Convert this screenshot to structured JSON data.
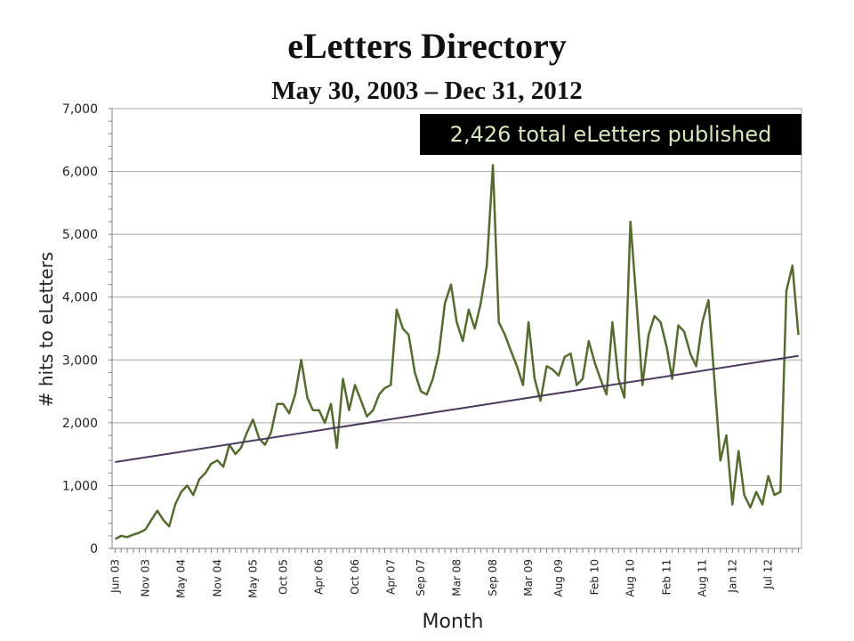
{
  "title": "eLetters Directory",
  "subtitle": "May 30, 2003 – Dec 31, 2012",
  "banner": "2,426 total eLetters published",
  "chart_data": {
    "type": "line",
    "title": "eLetters Directory",
    "subtitle": "May 30, 2003 – Dec 31, 2012",
    "xlabel": "Month",
    "ylabel": "# hits to eLetters",
    "ylim": [
      0,
      7000
    ],
    "yticks": [
      0,
      1000,
      2000,
      3000,
      4000,
      5000,
      6000,
      7000
    ],
    "ytick_labels": [
      "0",
      "1,000",
      "2,000",
      "3,000",
      "4,000",
      "5,000",
      "6,000",
      "7,000"
    ],
    "xlim": [
      "2003-05-30",
      "2012-12-31"
    ],
    "xticks": [
      "2003-06",
      "2003-11",
      "2004-05",
      "2004-11",
      "2005-05",
      "2005-10",
      "2006-04",
      "2006-10",
      "2007-04",
      "2007-09",
      "2008-03",
      "2008-09",
      "2009-03",
      "2009-08",
      "2010-02",
      "2010-08",
      "2011-02",
      "2011-08",
      "2012-01",
      "2012-07"
    ],
    "xtick_labels": [
      "Jun 03",
      "Nov 03",
      "May 04",
      "Nov 04",
      "May 05",
      "Oct 05",
      "Apr 06",
      "Oct 06",
      "Apr 07",
      "Sep 07",
      "Mar 08",
      "Sep 08",
      "Mar 09",
      "Aug 09",
      "Feb 10",
      "Aug 10",
      "Feb 11",
      "Aug 11",
      "Jan 12",
      "Jul 12"
    ],
    "grid": "horizontal",
    "legend": "none",
    "series": [
      {
        "color": "#556b2f",
        "x": [
          "2003-06",
          "2003-07",
          "2003-08",
          "2003-09",
          "2003-10",
          "2003-11",
          "2003-12",
          "2004-01",
          "2004-02",
          "2004-03",
          "2004-04",
          "2004-05",
          "2004-06",
          "2004-07",
          "2004-08",
          "2004-09",
          "2004-10",
          "2004-11",
          "2004-12",
          "2005-01",
          "2005-02",
          "2005-03",
          "2005-04",
          "2005-05",
          "2005-06",
          "2005-07",
          "2005-08",
          "2005-09",
          "2005-10",
          "2005-11",
          "2005-12",
          "2006-01",
          "2006-02",
          "2006-03",
          "2006-04",
          "2006-05",
          "2006-06",
          "2006-07",
          "2006-08",
          "2006-09",
          "2006-10",
          "2006-11",
          "2006-12",
          "2007-01",
          "2007-02",
          "2007-03",
          "2007-04",
          "2007-05",
          "2007-06",
          "2007-07",
          "2007-08",
          "2007-09",
          "2007-10",
          "2007-11",
          "2007-12",
          "2008-01",
          "2008-02",
          "2008-03",
          "2008-04",
          "2008-05",
          "2008-06",
          "2008-07",
          "2008-08",
          "2008-09",
          "2008-10",
          "2008-11",
          "2008-12",
          "2009-01",
          "2009-02",
          "2009-03",
          "2009-04",
          "2009-05",
          "2009-06",
          "2009-07",
          "2009-08",
          "2009-09",
          "2009-10",
          "2009-11",
          "2009-12",
          "2010-01",
          "2010-02",
          "2010-03",
          "2010-04",
          "2010-05",
          "2010-06",
          "2010-07",
          "2010-08",
          "2010-09",
          "2010-10",
          "2010-11",
          "2010-12",
          "2011-01",
          "2011-02",
          "2011-03",
          "2011-04",
          "2011-05",
          "2011-06",
          "2011-07",
          "2011-08",
          "2011-09",
          "2011-10",
          "2011-11",
          "2011-12",
          "2012-01",
          "2012-02",
          "2012-03",
          "2012-04",
          "2012-05",
          "2012-06",
          "2012-07",
          "2012-08",
          "2012-09",
          "2012-10",
          "2012-11",
          "2012-12"
        ],
        "values": [
          150,
          200,
          180,
          220,
          250,
          300,
          450,
          600,
          450,
          350,
          700,
          900,
          1000,
          850,
          1100,
          1200,
          1350,
          1400,
          1300,
          1650,
          1500,
          1600,
          1850,
          2050,
          1750,
          1650,
          1850,
          2300,
          2300,
          2150,
          2450,
          3000,
          2400,
          2200,
          2200,
          2000,
          2300,
          1600,
          2700,
          2200,
          2600,
          2350,
          2100,
          2200,
          2450,
          2550,
          2600,
          3800,
          3500,
          3400,
          2800,
          2500,
          2450,
          2700,
          3100,
          3900,
          4200,
          3600,
          3300,
          3800,
          3500,
          3900,
          4500,
          6100,
          3600,
          3400,
          3150,
          2900,
          2600,
          3600,
          2700,
          2350,
          2900,
          2850,
          2750,
          3050,
          3100,
          2600,
          2700,
          3300,
          2950,
          2700,
          2450,
          3600,
          2700,
          2400,
          5200,
          3900,
          2600,
          3400,
          3700,
          3600,
          3200,
          2700,
          3550,
          3450,
          3100,
          2900,
          3600,
          3950,
          2700,
          1400,
          1800,
          700,
          1550,
          850,
          650,
          900,
          700,
          1150,
          850,
          900,
          4100,
          4500,
          3400
        ]
      },
      {
        "name": "trend",
        "color": "#4a3a5e",
        "x": [
          "2003-06",
          "2012-12"
        ],
        "values": [
          1375,
          3065
        ]
      }
    ]
  }
}
